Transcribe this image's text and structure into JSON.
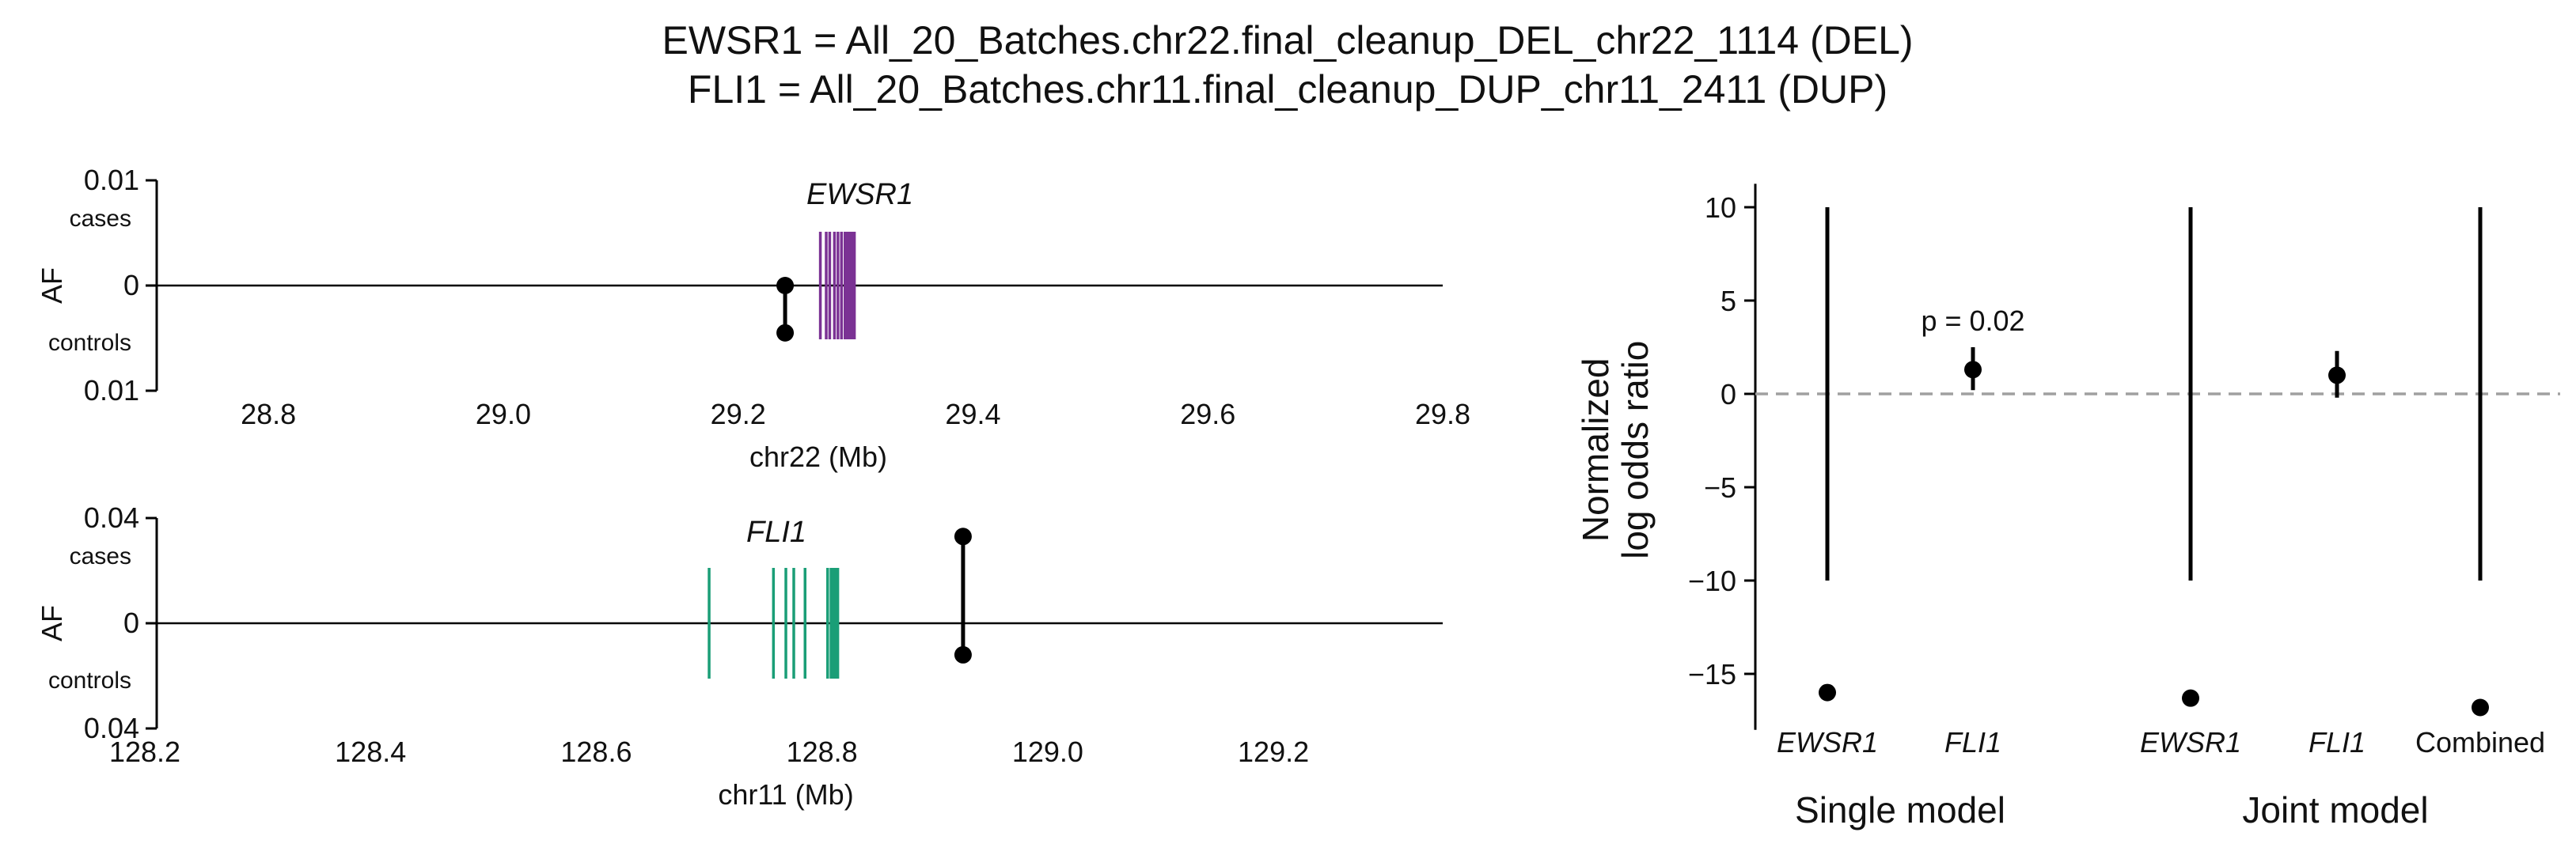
{
  "title_lines": [
    "EWSR1 = All_20_Batches.chr22.final_cleanup_DEL_chr22_1114 (DEL)",
    "FLI1 = All_20_Batches.chr11.final_cleanup_DUP_chr11_2411 (DUP)"
  ],
  "colors": {
    "ewsr1_exon": "#7b3294",
    "fli1_exon": "#1a9e77",
    "point": "#000000",
    "refline": "#a0a0a0"
  },
  "chart_data": [
    {
      "type": "lollipop-genomic",
      "gene": "EWSR1",
      "xlabel": "chr22 (Mb)",
      "ylabel": "AF",
      "xlim": [
        28.75,
        29.8
      ],
      "xticks": [
        "28.8",
        "29.0",
        "29.2",
        "29.4",
        "29.6",
        "29.8"
      ],
      "yticks": [
        "0.01",
        "0",
        "0.01"
      ],
      "ylim": [
        -0.01,
        0.01
      ],
      "upper_label": "cases",
      "lower_label": "controls",
      "variant": {
        "pos": 29.24,
        "cases_af": 0.0,
        "controls_af": -0.0045
      },
      "exons": [
        29.27,
        29.275,
        29.278,
        29.282,
        29.285,
        29.288,
        29.291,
        29.293,
        29.295,
        29.297,
        29.299
      ],
      "exon_color": "#7b3294"
    },
    {
      "type": "lollipop-genomic",
      "gene": "FLI1",
      "xlabel": "chr11 (Mb)",
      "ylabel": "AF",
      "xlim": [
        128.2,
        129.35
      ],
      "xticks": [
        "128.2",
        "128.4",
        "128.6",
        "128.8",
        "129.0",
        "129.2"
      ],
      "yticks": [
        "0.04",
        "0",
        "0.04"
      ],
      "ylim": [
        -0.04,
        0.04
      ],
      "upper_label": "cases",
      "lower_label": "controls",
      "variant": {
        "pos": 128.925,
        "cases_af": 0.033,
        "controls_af": -0.012
      },
      "exons": [
        128.7,
        128.757,
        128.768,
        128.775,
        128.785,
        128.805,
        128.808,
        128.81,
        128.812,
        128.814
      ],
      "exon_color": "#1a9e77"
    },
    {
      "type": "scatter",
      "ylabel_lines": [
        "Normalized",
        "log odds ratio"
      ],
      "ylim": [
        -18,
        11
      ],
      "yticks": [
        10,
        5,
        0,
        -5,
        -10,
        -15
      ],
      "reference_line": 0,
      "categories": [
        "EWSR1",
        "FLI1",
        "EWSR1",
        "FLI1",
        "Combined"
      ],
      "group_labels": [
        "Single model",
        "Joint model"
      ],
      "points": [
        {
          "category": "EWSR1",
          "group": "Single model",
          "value": -16.0,
          "ci": [
            -10,
            10
          ]
        },
        {
          "category": "FLI1",
          "group": "Single model",
          "value": 1.3,
          "ci": [
            0.2,
            2.5
          ]
        },
        {
          "category": "EWSR1",
          "group": "Joint model",
          "value": -16.3,
          "ci": [
            -10,
            10
          ]
        },
        {
          "category": "FLI1",
          "group": "Joint model",
          "value": 1.0,
          "ci": [
            -0.2,
            2.3
          ]
        },
        {
          "category": "Combined",
          "group": "Joint model",
          "value": -16.8,
          "ci": [
            -10,
            10
          ]
        }
      ],
      "annotation": "p = 0.02"
    }
  ]
}
